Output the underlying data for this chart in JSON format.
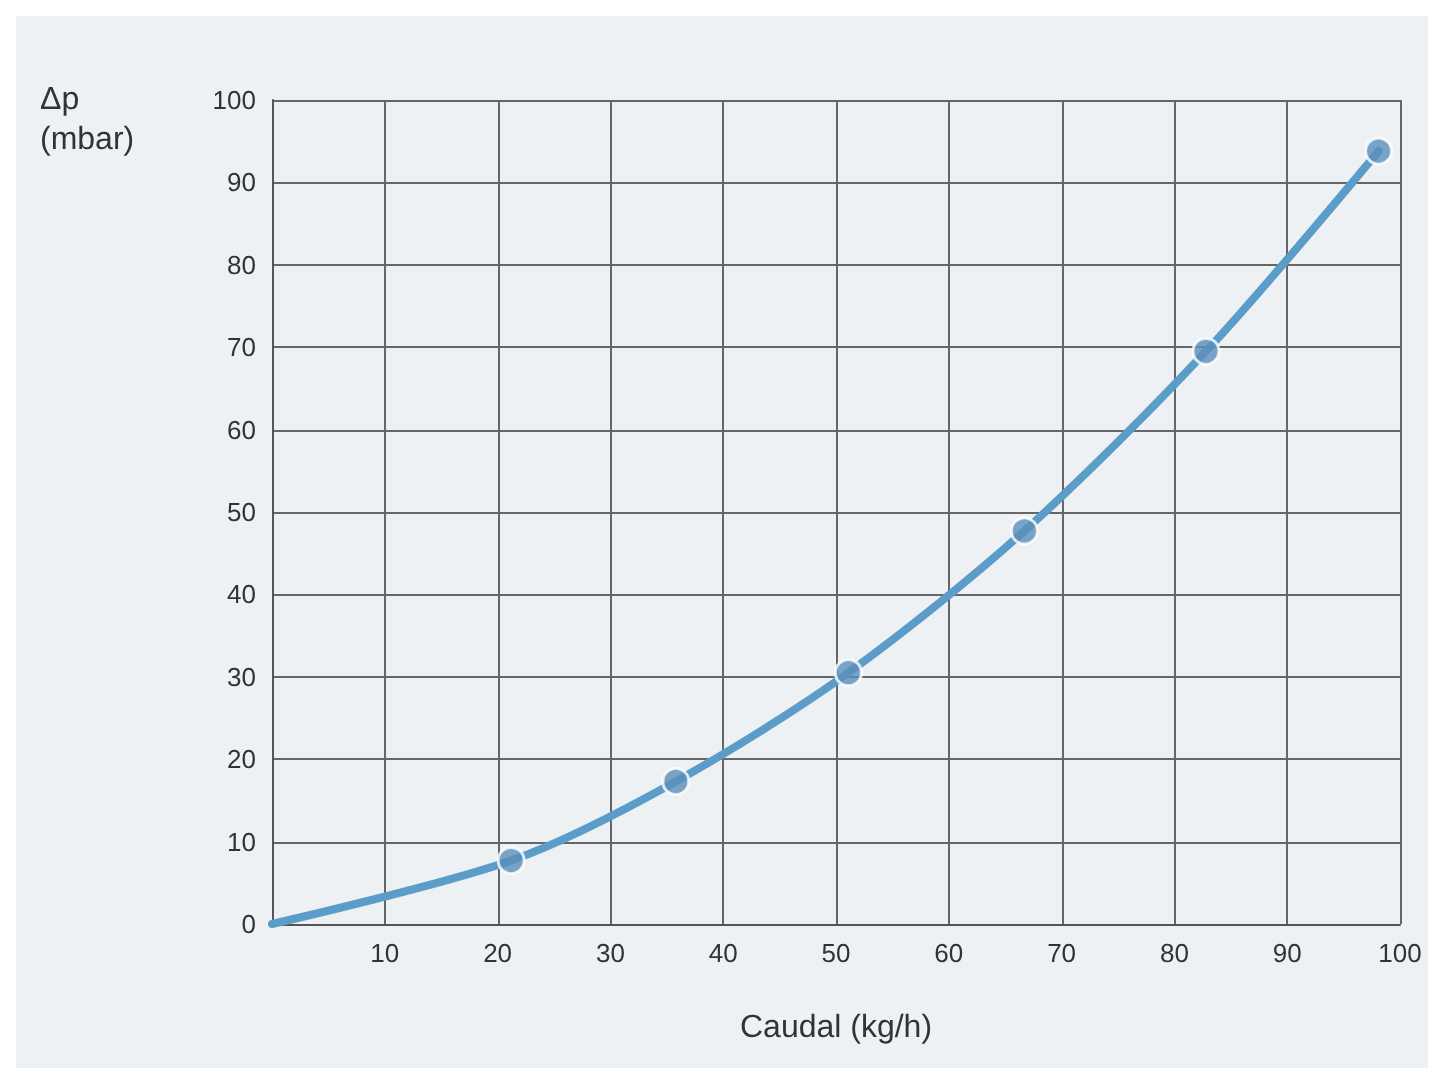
{
  "chart_data": {
    "type": "line",
    "xlabel": "Caudal (kg/h)",
    "ylabel": "Δp\n(mbar)",
    "xlim": [
      0,
      100
    ],
    "xticks": [
      {
        "value": 0,
        "label": null
      },
      10,
      20,
      30,
      40,
      50,
      60,
      70,
      80,
      90,
      100
    ],
    "ylim": [
      0,
      100
    ],
    "yticks": [
      0,
      10,
      20,
      30,
      40,
      50,
      60,
      70,
      80,
      90,
      100
    ],
    "grid": true,
    "series": [
      {
        "marker": "none",
        "color": "#5b9cc9",
        "x": [
          0,
          21.2,
          35.8,
          51.1,
          66.7,
          82.8,
          98.1
        ],
        "values": [
          0,
          7.7,
          17.3,
          30.5,
          47.7,
          69.5,
          93.8
        ]
      },
      {
        "type": "scatter",
        "marker": "circle",
        "color": "#5a8fba",
        "x": [
          21.2,
          35.8,
          51.1,
          66.7,
          82.8,
          98.1
        ],
        "values": [
          7.7,
          17.3,
          30.5,
          47.7,
          69.5,
          93.8
        ]
      }
    ]
  }
}
